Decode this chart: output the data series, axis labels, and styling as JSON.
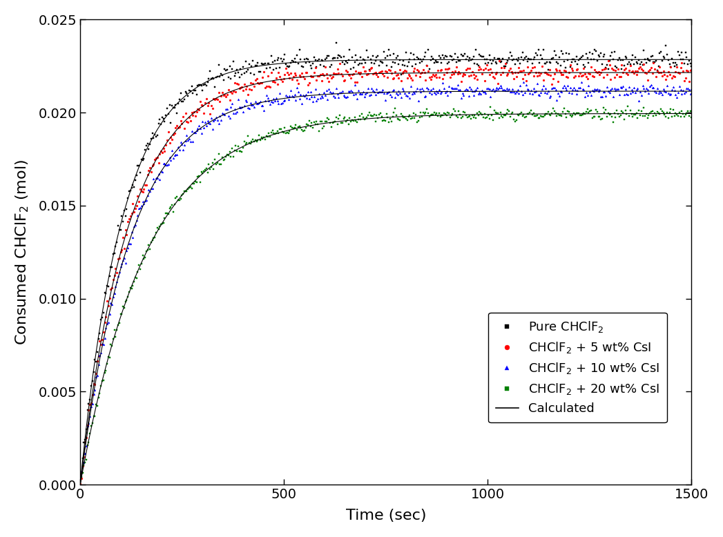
{
  "title": "",
  "xlabel": "Time (sec)",
  "ylabel": "Consumed CHClF$_2$ (mol)",
  "xlim": [
    0,
    1500
  ],
  "ylim": [
    0.0,
    0.025
  ],
  "yticks": [
    0.0,
    0.005,
    0.01,
    0.015,
    0.02,
    0.025
  ],
  "xticks": [
    0,
    500,
    1000,
    1500
  ],
  "series": [
    {
      "label": "Pure CHClF$_2$",
      "color": "black",
      "marker": "s",
      "A": 0.02285,
      "tau": 105,
      "noise": 0.00025,
      "seed": 42
    },
    {
      "label": "CHClF$_2$ + 5 wt% CsI",
      "color": "red",
      "marker": "o",
      "A": 0.02215,
      "tau": 120,
      "noise": 0.00022,
      "seed": 43
    },
    {
      "label": "CHClF$_2$ + 10 wt% CsI",
      "color": "blue",
      "marker": "^",
      "A": 0.02115,
      "tau": 125,
      "noise": 0.00018,
      "seed": 44
    },
    {
      "label": "CHClF$_2$ + 20 wt% CsI",
      "color": "green",
      "marker": "s",
      "A": 0.01995,
      "tau": 165,
      "noise": 0.00015,
      "seed": 45
    }
  ],
  "calc_curves": [
    {
      "A": 0.02285,
      "tau": 105
    },
    {
      "A": 0.02215,
      "tau": 120
    },
    {
      "A": 0.02115,
      "tau": 125
    },
    {
      "A": 0.01995,
      "tau": 165
    }
  ],
  "figure_bg": "#ffffff",
  "axes_bg": "#ffffff",
  "font_size": 14,
  "marker_size": 2,
  "line_width": 0.8
}
